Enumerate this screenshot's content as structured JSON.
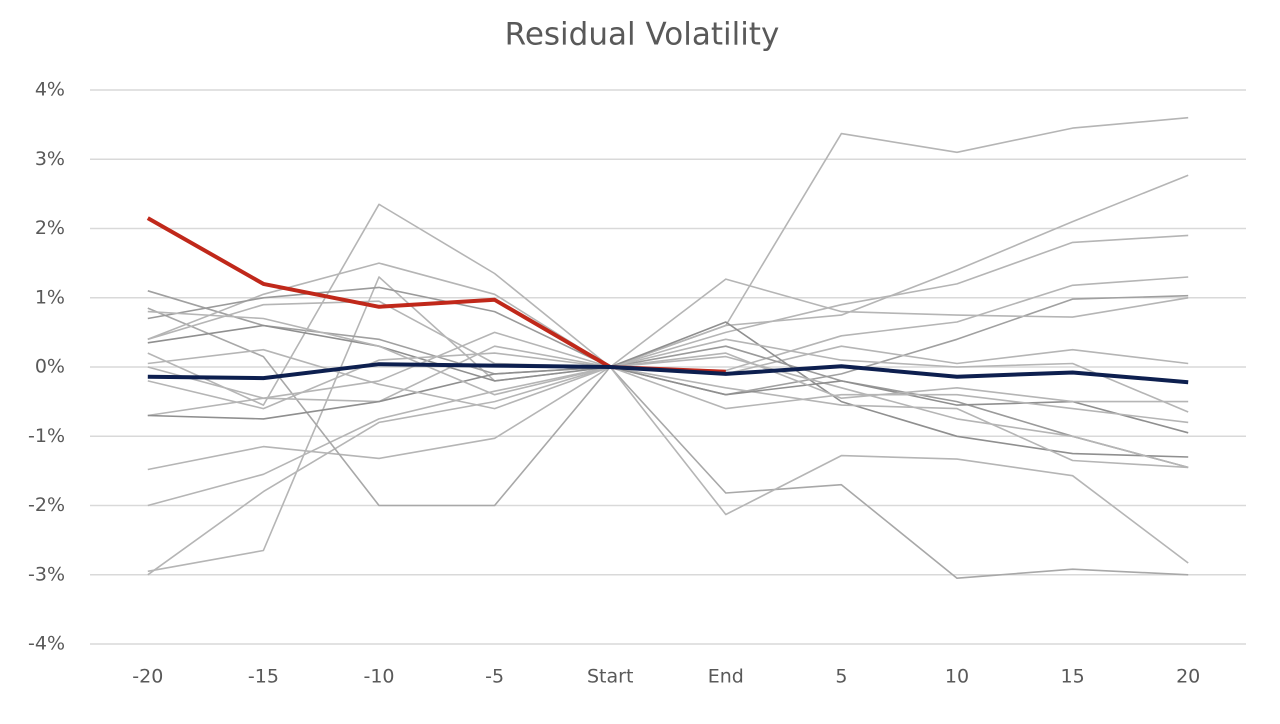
{
  "chart_data": {
    "type": "line",
    "title": "Residual Volatility",
    "categories": [
      "-20",
      "-15",
      "-10",
      "-5",
      "Start",
      "End",
      "5",
      "10",
      "15",
      "20"
    ],
    "ylim": [
      -4,
      4
    ],
    "yticks": [
      {
        "value": -4,
        "label": "-4%"
      },
      {
        "value": -3,
        "label": "-3%"
      },
      {
        "value": -2,
        "label": "-2%"
      },
      {
        "value": -1,
        "label": "-1%"
      },
      {
        "value": 0,
        "label": "0%"
      },
      {
        "value": 1,
        "label": "1%"
      },
      {
        "value": 2,
        "label": "2%"
      },
      {
        "value": 3,
        "label": "3%"
      },
      {
        "value": 4,
        "label": "4%"
      }
    ],
    "grid": true,
    "series": [
      {
        "color": "#b5b5b5",
        "width": 1.6,
        "values": [
          -3,
          -1.8,
          -0.8,
          -0.5,
          0,
          0.6,
          3.37,
          3.1,
          3.45,
          3.6
        ]
      },
      {
        "color": "#b5b5b5",
        "width": 1.6,
        "values": [
          -2.95,
          -2.65,
          1.3,
          -0.2,
          0,
          0.6,
          0.75,
          1.4,
          2.1,
          2.77
        ]
      },
      {
        "color": "#b5b5b5",
        "width": 1.6,
        "values": [
          -2,
          -1.55,
          -0.75,
          -0.35,
          0,
          0.5,
          0.9,
          1.2,
          1.8,
          1.9
        ]
      },
      {
        "color": "#b5b5b5",
        "width": 1.6,
        "values": [
          -1.48,
          -1.15,
          -1.32,
          -1.03,
          0,
          -0.05,
          0.45,
          0.65,
          1.18,
          1.3
        ]
      },
      {
        "color": "#a0a0a0",
        "width": 1.6,
        "values": [
          1.1,
          0.6,
          0.4,
          -0.1,
          0,
          -0.4,
          -0.1,
          0.4,
          0.98,
          1.03
        ]
      },
      {
        "color": "#a8a8a8",
        "width": 1.6,
        "values": [
          0.85,
          0.15,
          -2,
          -2,
          0,
          -1.82,
          -1.7,
          -3.05,
          -2.92,
          -3
        ]
      },
      {
        "color": "#b5b5b5",
        "width": 1.6,
        "values": [
          0.2,
          -0.55,
          2.35,
          1.35,
          0,
          -2.13,
          -1.28,
          -1.33,
          -1.57,
          -2.83
        ]
      },
      {
        "color": "#b5b5b5",
        "width": 1.6,
        "values": [
          0.4,
          1.05,
          1.5,
          1.05,
          0,
          1.27,
          0.8,
          0.75,
          0.72,
          1.0
        ]
      },
      {
        "color": "#b5b5b5",
        "width": 1.6,
        "values": [
          -0.7,
          -0.45,
          -0.5,
          0.3,
          0,
          -0.1,
          0.3,
          0.05,
          0.25,
          0.05
        ]
      },
      {
        "color": "#9a9a9a",
        "width": 1.6,
        "values": [
          0.7,
          1.0,
          1.15,
          0.8,
          0,
          0.3,
          -0.2,
          -0.5,
          -1.0,
          -1.45
        ]
      },
      {
        "color": "#8f8f8f",
        "width": 1.6,
        "values": [
          0.35,
          0.6,
          0.3,
          -0.2,
          0,
          0.65,
          -0.5,
          -1.0,
          -1.25,
          -1.3
        ]
      },
      {
        "color": "#b5b5b5",
        "width": 1.6,
        "values": [
          -0.2,
          -0.6,
          0.1,
          0.2,
          0,
          -0.3,
          -0.55,
          -0.6,
          -1.35,
          -1.45
        ]
      },
      {
        "color": "#b5b5b5",
        "width": 1.6,
        "values": [
          0.0,
          -0.45,
          -0.2,
          0.5,
          0,
          0.15,
          -0.3,
          -0.75,
          -1.0,
          -1.45
        ]
      },
      {
        "color": "#8f8f8f",
        "width": 1.6,
        "values": [
          -0.7,
          -0.75,
          -0.5,
          -0.1,
          0,
          -0.4,
          -0.2,
          -0.55,
          -0.5,
          -0.95
        ]
      },
      {
        "color": "#b5b5b5",
        "width": 1.6,
        "values": [
          0.8,
          0.7,
          0.3,
          -0.4,
          0,
          -0.6,
          -0.4,
          -0.4,
          -0.6,
          -0.8
        ]
      },
      {
        "color": "#b5b5b5",
        "width": 1.6,
        "values": [
          0.05,
          0.25,
          -0.25,
          -0.6,
          0,
          0.4,
          0.1,
          0.0,
          0.05,
          -0.65
        ]
      },
      {
        "color": "#b5b5b5",
        "width": 1.6,
        "values": [
          0.4,
          0.9,
          0.95,
          0.05,
          0,
          0.2,
          -0.45,
          -0.3,
          -0.5,
          -0.5
        ]
      },
      {
        "color": "#c0281a",
        "width": 4,
        "values": [
          2.15,
          1.2,
          0.87,
          0.97,
          0,
          -0.07,
          null,
          null,
          null,
          null
        ]
      },
      {
        "color": "#0d1f4f",
        "width": 4,
        "values": [
          -0.14,
          -0.16,
          0.04,
          0.02,
          0,
          -0.1,
          0.01,
          -0.14,
          -0.08,
          -0.22
        ]
      }
    ]
  }
}
